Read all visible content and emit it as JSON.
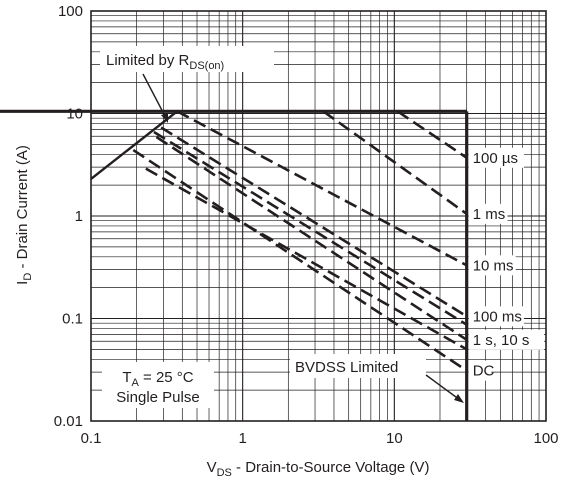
{
  "chart_data": {
    "type": "line",
    "x_scale": "log",
    "y_scale": "log",
    "xlim": [
      0.1,
      100
    ],
    "ylim": [
      0.01,
      100
    ],
    "grid": true,
    "x_ticks": [
      {
        "value": 0.1,
        "label": "0.1"
      },
      {
        "value": 1,
        "label": "1"
      },
      {
        "value": 10,
        "label": "10"
      },
      {
        "value": 100,
        "label": "100"
      }
    ],
    "y_ticks": [
      {
        "value": 100,
        "label": "100"
      },
      {
        "value": 10,
        "label": "10"
      },
      {
        "value": 1,
        "label": "1"
      },
      {
        "value": 0.1,
        "label": "0.1"
      },
      {
        "value": 0.01,
        "label": "0.01"
      }
    ],
    "xlabel": {
      "main": "V",
      "sub": "DS",
      "rest": " - Drain-to-Source Voltage (V)"
    },
    "ylabel": {
      "main": "I",
      "sub": "D",
      "rest": " - Drain Current (A)"
    },
    "color": "#231f20",
    "limits": {
      "current_limit_A": 10.5,
      "bvdss_V": 30
    },
    "rds_on_line": [
      [
        0.1,
        2.3
      ],
      [
        0.37,
        10.5
      ]
    ],
    "series": [
      {
        "name": "100 µs",
        "style": "dashed",
        "points": [
          [
            10.5,
            10.5
          ],
          [
            30,
            3.7
          ]
        ]
      },
      {
        "name": "1 ms",
        "style": "dashed",
        "points": [
          [
            3.4,
            10.5
          ],
          [
            30,
            1.05
          ]
        ]
      },
      {
        "name": "10 ms",
        "style": "dashed",
        "points": [
          [
            0.37,
            10.5
          ],
          [
            30,
            0.33
          ]
        ]
      },
      {
        "name": "100 ms",
        "style": "dashed",
        "points": [
          [
            0.29,
            7.3
          ],
          [
            30,
            0.105
          ]
        ]
      },
      {
        "name": "1 s, 10 s",
        "style": "dashed",
        "points": [
          [
            0.27,
            5.9
          ],
          [
            30,
            0.062
          ]
        ]
      },
      {
        "name": "DC",
        "style": "dashed",
        "points": [
          [
            0.19,
            4.4
          ],
          [
            30,
            0.031
          ]
        ]
      },
      {
        "name": "",
        "style": "dashed",
        "points": [
          [
            0.23,
            2.9
          ],
          [
            30,
            0.05
          ]
        ]
      },
      {
        "name": "",
        "style": "dashed",
        "points": [
          [
            0.26,
            6.6
          ],
          [
            30,
            0.087
          ]
        ]
      }
    ],
    "annotations": {
      "rds": {
        "text": "Limited by R",
        "sub": "DS(on)"
      },
      "bvdss": {
        "text": "BVDSS Limited"
      },
      "conditions_line1": {
        "text": "T",
        "sub": "A",
        "rest": " = 25 °C"
      },
      "conditions_line2": {
        "text": "Single Pulse"
      }
    }
  }
}
